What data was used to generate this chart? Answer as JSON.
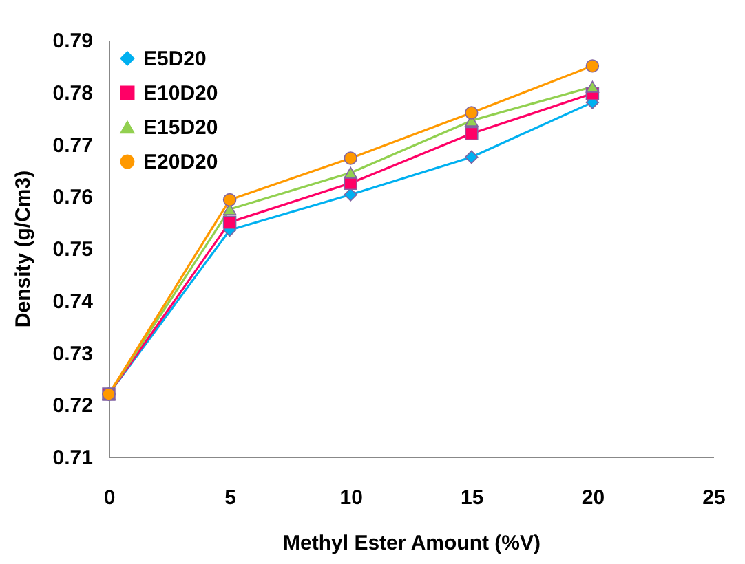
{
  "chart_data": {
    "type": "line",
    "xlabel": "Methyl Ester Amount (%V)",
    "ylabel": "Density (g/Cm3)",
    "x": [
      0,
      5,
      10,
      15,
      20
    ],
    "series": [
      {
        "name": "E5D20",
        "color": "#00b0f0",
        "marker": "diamond",
        "values": [
          0.722,
          0.7535,
          0.7603,
          0.7675,
          0.778
        ]
      },
      {
        "name": "E10D20",
        "color": "#ff0066",
        "marker": "square",
        "values": [
          0.722,
          0.755,
          0.7625,
          0.772,
          0.7797
        ]
      },
      {
        "name": "E15D20",
        "color": "#92d050",
        "marker": "triangle",
        "values": [
          0.722,
          0.7575,
          0.7645,
          0.7745,
          0.781
        ]
      },
      {
        "name": "E20D20",
        "color": "#ff9900",
        "marker": "circle",
        "values": [
          0.722,
          0.7593,
          0.7673,
          0.776,
          0.785
        ]
      }
    ],
    "xlim": [
      0,
      25
    ],
    "xticks": [
      0,
      5,
      10,
      15,
      20,
      25
    ],
    "ylim": [
      0.71,
      0.79
    ],
    "yticks": [
      0.71,
      0.72,
      0.73,
      0.74,
      0.75,
      0.76,
      0.77,
      0.78,
      0.79
    ],
    "grid": false,
    "legend": "top left"
  }
}
